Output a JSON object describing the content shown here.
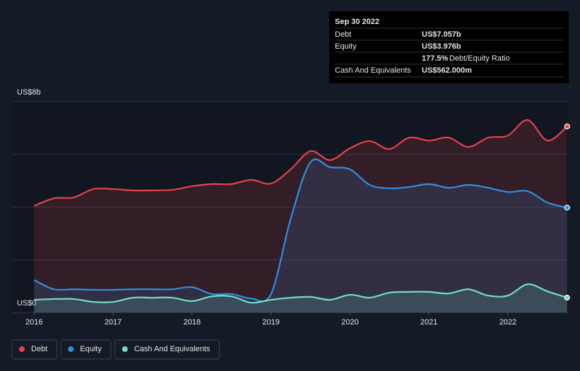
{
  "chart_data": {
    "type": "area-line",
    "x": [
      2016,
      2016.25,
      2016.5,
      2016.75,
      2017,
      2017.25,
      2017.5,
      2017.75,
      2018,
      2018.25,
      2018.5,
      2018.75,
      2019,
      2019.25,
      2019.5,
      2019.75,
      2020,
      2020.25,
      2020.5,
      2020.75,
      2021,
      2021.25,
      2021.5,
      2021.75,
      2022,
      2022.25,
      2022.5,
      2022.75
    ],
    "series": [
      {
        "name": "Debt",
        "color": "#e5434f",
        "values": [
          4.04,
          4.33,
          4.36,
          4.68,
          4.68,
          4.63,
          4.63,
          4.65,
          4.79,
          4.87,
          4.87,
          5.03,
          4.89,
          5.43,
          6.12,
          5.78,
          6.23,
          6.5,
          6.2,
          6.63,
          6.52,
          6.63,
          6.28,
          6.63,
          6.71,
          7.3,
          6.52,
          7.057
        ]
      },
      {
        "name": "Equity",
        "color": "#2f8fe0",
        "values": [
          1.23,
          0.88,
          0.88,
          0.86,
          0.86,
          0.88,
          0.88,
          0.88,
          0.96,
          0.7,
          0.7,
          0.53,
          0.7,
          3.56,
          5.7,
          5.51,
          5.43,
          4.84,
          4.71,
          4.76,
          4.87,
          4.73,
          4.84,
          4.73,
          4.57,
          4.6,
          4.17,
          3.976
        ]
      },
      {
        "name": "Cash And Equivalents",
        "color": "#6fe0c8",
        "values": [
          0.48,
          0.51,
          0.51,
          0.4,
          0.4,
          0.56,
          0.56,
          0.56,
          0.43,
          0.61,
          0.61,
          0.37,
          0.48,
          0.56,
          0.59,
          0.48,
          0.67,
          0.56,
          0.75,
          0.78,
          0.78,
          0.72,
          0.88,
          0.64,
          0.64,
          1.07,
          0.8,
          0.562
        ]
      }
    ],
    "xlim": [
      2015.72,
      2022.77
    ],
    "xticks": [
      2016,
      2017,
      2018,
      2019,
      2020,
      2021,
      2022
    ],
    "ylim": [
      0,
      8
    ],
    "yticks": [
      {
        "value": 0,
        "label": "US$0"
      },
      {
        "value": 8,
        "label": "US$8b"
      }
    ],
    "ygrid": [
      0,
      2,
      4,
      6,
      8
    ],
    "legend": "bottom-left",
    "tooltip": {
      "date": "Sep 30 2022",
      "rows": [
        {
          "label": "Debt",
          "value": "US$7.057b"
        },
        {
          "label": "Equity",
          "value": "US$3.976b"
        },
        {
          "label": "177.5%",
          "value": "Debt/Equity Ratio"
        },
        {
          "label": "Cash And Equivalents",
          "value": "US$562.000m"
        }
      ]
    }
  }
}
